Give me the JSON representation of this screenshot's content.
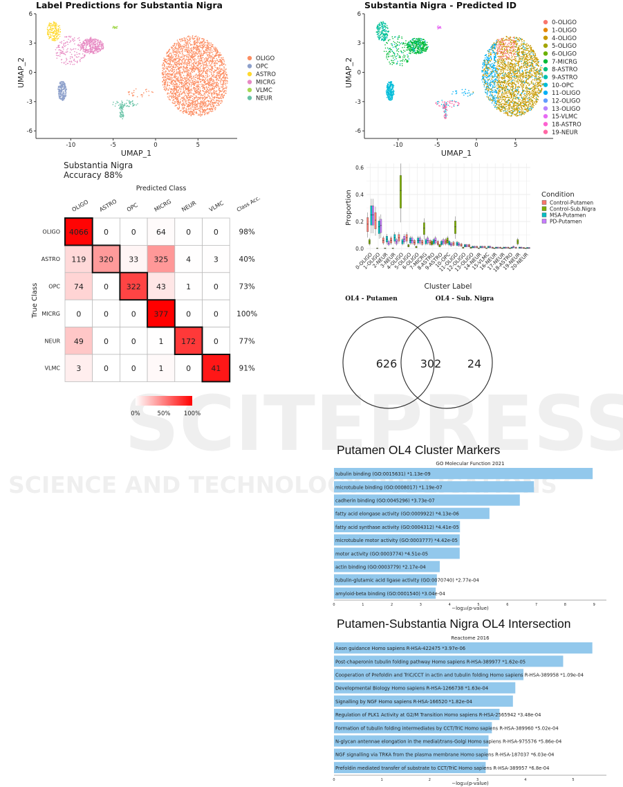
{
  "watermark": {
    "line1": "SCITEPRESS",
    "line2": "SCIENCE AND TECHNOLOGY PUBLICATIONS"
  },
  "chart_data": [
    {
      "id": "umap_labels",
      "type": "scatter",
      "title": "Label Predictions for Substantia Nigra",
      "xlabel": "UMAP_1",
      "ylabel": "UMAP_2",
      "xticks": [
        -10,
        -5,
        0,
        5
      ],
      "yticks": [
        -6,
        -3,
        0,
        3,
        6
      ],
      "xlim": [
        -14,
        9.5
      ],
      "ylim": [
        -6.8,
        6.2
      ],
      "legend": [
        {
          "label": "OLIGO",
          "color": "#fc8d62"
        },
        {
          "label": "OPC",
          "color": "#8da0cb"
        },
        {
          "label": "ASTRO",
          "color": "#ffd92f"
        },
        {
          "label": "MICRG",
          "color": "#e78ac3"
        },
        {
          "label": "VLMC",
          "color": "#a6d854"
        },
        {
          "label": "NEUR",
          "color": "#66c2a5"
        }
      ],
      "regions": [
        {
          "label": "OLIGO",
          "center": [
            4.6,
            -0.4
          ],
          "spread": [
            3.9,
            4.1
          ],
          "count": 2600
        },
        {
          "label": "ASTRO",
          "center": [
            -12.0,
            4.2
          ],
          "spread": [
            0.8,
            1.0
          ],
          "count": 170
        },
        {
          "label": "MICRG",
          "center": [
            -7.5,
            2.7
          ],
          "spread": [
            1.4,
            0.8
          ],
          "count": 330
        },
        {
          "label": "MICRG",
          "center": [
            -10.0,
            2.2
          ],
          "spread": [
            1.8,
            1.6
          ],
          "count": 160
        },
        {
          "label": "OPC",
          "center": [
            -11.0,
            -1.9
          ],
          "spread": [
            0.5,
            1.0
          ],
          "count": 220
        },
        {
          "label": "NEUR",
          "center": [
            -4.0,
            -3.9
          ],
          "spread": [
            0.25,
            0.9
          ],
          "count": 60
        },
        {
          "label": "NEUR",
          "center": [
            -3.6,
            -3.2
          ],
          "spread": [
            1.6,
            0.35
          ],
          "count": 50
        },
        {
          "label": "VLMC",
          "center": [
            -4.8,
            4.6
          ],
          "spread": [
            0.3,
            0.12
          ],
          "count": 18
        },
        {
          "label": "OLIGO",
          "center": [
            -1.8,
            -2.1
          ],
          "spread": [
            1.6,
            0.4
          ],
          "count": 25
        }
      ]
    },
    {
      "id": "umap_predicted",
      "type": "scatter",
      "title": "Substantia Nigra - Predicted ID",
      "xlabel": "UMAP_1",
      "ylabel": "UMAP_2",
      "xticks": [
        -10,
        -5,
        0,
        5
      ],
      "yticks": [
        -6,
        -3,
        0,
        3,
        6
      ],
      "legend": [
        {
          "label": "0-OLIGO",
          "color": "#F8766D"
        },
        {
          "label": "1-OLIGO",
          "color": "#E58700"
        },
        {
          "label": "4-OLIGO",
          "color": "#C99800"
        },
        {
          "label": "5-OLIGO",
          "color": "#A3A500"
        },
        {
          "label": "6-OLIGO",
          "color": "#6BB100"
        },
        {
          "label": "7-MICRG",
          "color": "#00BA38"
        },
        {
          "label": "8-ASTRO",
          "color": "#00BF7D"
        },
        {
          "label": "9-ASTRO",
          "color": "#00C0AF"
        },
        {
          "label": "10-OPC",
          "color": "#00BCD8"
        },
        {
          "label": "11-OLIGO",
          "color": "#00B0F6"
        },
        {
          "label": "12-OLIGO",
          "color": "#619CFF"
        },
        {
          "label": "13-OLIGO",
          "color": "#B983FF"
        },
        {
          "label": "15-VLMC",
          "color": "#E76BF3"
        },
        {
          "label": "18-ASTRO",
          "color": "#FD61D1"
        },
        {
          "label": "19-NEUR",
          "color": "#FF67A4"
        }
      ]
    },
    {
      "id": "confusion_matrix",
      "type": "heatmap",
      "title": "Substantia Nigra",
      "subtitle": "Accuracy 88%",
      "xlabel": "Predicted Class",
      "ylabel": "True Class",
      "acc_header": "Class Acc.",
      "classes": [
        "OLIGO",
        "ASTRO",
        "OPC",
        "MICRG",
        "NEUR",
        "VLMC"
      ],
      "matrix": [
        [
          4066,
          0,
          0,
          64,
          0,
          0
        ],
        [
          119,
          320,
          33,
          325,
          4,
          3
        ],
        [
          74,
          0,
          322,
          43,
          1,
          0
        ],
        [
          0,
          0,
          0,
          377,
          0,
          0
        ],
        [
          49,
          0,
          0,
          1,
          172,
          0
        ],
        [
          3,
          0,
          0,
          1,
          0,
          41
        ]
      ],
      "class_acc": [
        "98%",
        "40%",
        "73%",
        "100%",
        "77%",
        "91%"
      ],
      "colorbar_ticks": [
        "0%",
        "50%",
        "100%"
      ],
      "color_high": "#ff0000"
    },
    {
      "id": "cluster_proportions",
      "type": "box",
      "xlabel": "Cluster Label",
      "ylabel": "Proportion",
      "yticks": [
        "0.0",
        "0.2",
        "0.4",
        "0.6"
      ],
      "ylim": [
        0,
        0.62
      ],
      "legend_title": "Condition",
      "categories": [
        "0-OLIGO",
        "1-OLIGO",
        "2-NEUR",
        "3-NEUR",
        "4-OLIGO",
        "5-OLIGO",
        "6-OLIGO",
        "7-MICRG",
        "8-ASTRO",
        "9-ASTRO",
        "10-OPC",
        "11-OLIGO",
        "12-OLIGO",
        "13-OLIGO",
        "14-NEUR",
        "15-VLMC",
        "16-NEUR",
        "17-NEUR",
        "18-ASTRO",
        "19-NEUR",
        "20-NEUR"
      ],
      "series": [
        {
          "name": "Control-Putamen",
          "color": "#f8766d",
          "median": [
            0.18,
            0.21,
            0.06,
            0.06,
            0.08,
            0.08,
            0.045,
            0.045,
            0.045,
            0.04,
            0.05,
            0.035,
            0.025,
            0.02,
            0.01,
            0.01,
            0.005,
            0.005,
            0.005,
            0.005,
            0.003
          ]
        },
        {
          "name": "Control-Sub.Nigra",
          "color": "#7cae00",
          "median": [
            0.05,
            0.0,
            0.0,
            0.0,
            0.43,
            0.02,
            0.01,
            0.15,
            0.04,
            0.02,
            0.06,
            0.16,
            0.005,
            0.005,
            0.0,
            0.0,
            0.0,
            0.0,
            0.0,
            0.05,
            0.0
          ]
        },
        {
          "name": "MSA-Putamen",
          "color": "#00bfc4",
          "median": [
            0.25,
            0.16,
            0.07,
            0.08,
            0.05,
            0.06,
            0.06,
            0.05,
            0.05,
            0.04,
            0.04,
            0.035,
            0.02,
            0.01,
            0.01,
            0.01,
            0.005,
            0.005,
            0.005,
            0.005,
            0.003
          ]
        },
        {
          "name": "PD-Putamen",
          "color": "#c77cff",
          "median": [
            0.25,
            0.17,
            0.04,
            0.05,
            0.07,
            0.06,
            0.06,
            0.06,
            0.06,
            0.05,
            0.03,
            0.03,
            0.02,
            0.01,
            0.01,
            0.01,
            0.005,
            0.005,
            0.01,
            0.005,
            0.003
          ]
        }
      ]
    },
    {
      "id": "venn",
      "type": "venn",
      "sets": [
        {
          "name": "OL4 - Putamen",
          "only": 626
        },
        {
          "name": "OL4 - Sub. Nigra",
          "only": 24
        }
      ],
      "intersection": 302
    },
    {
      "id": "go_mf",
      "type": "bar",
      "heading": "Putamen OL4 Cluster Markers",
      "title": "GO Molecular Function 2021",
      "xlabel": "−log₁₀(p-value)",
      "xticks": [
        0,
        1,
        2,
        3,
        4,
        5,
        6,
        7,
        8,
        9
      ],
      "bar_color": "#92c8ec",
      "bars": [
        {
          "label": "tubulin binding (GO:0015631)  *1.13e-09",
          "value": 8.95
        },
        {
          "label": "microtubule binding (GO:0008017)  *1.19e-07",
          "value": 6.92
        },
        {
          "label": "cadherin binding (GO:0045296)  *3.73e-07",
          "value": 6.43
        },
        {
          "label": "fatty acid elongase activity (GO:0009922)  *4.13e-06",
          "value": 5.38
        },
        {
          "label": "fatty acid synthase activity (GO:0004312)  *4.41e-05",
          "value": 4.36
        },
        {
          "label": "microtubule motor activity (GO:0003777)  *4.42e-05",
          "value": 4.35
        },
        {
          "label": "motor activity (GO:0003774)  *4.51e-05",
          "value": 4.35
        },
        {
          "label": "actin binding (GO:0003779)  *2.17e-04",
          "value": 3.66
        },
        {
          "label": "tubulin-glutamic acid ligase activity (GO:0070740)  *2.77e-04",
          "value": 3.56
        },
        {
          "label": "amyloid-beta binding (GO:0001540)  *3.04e-04",
          "value": 3.52
        }
      ]
    },
    {
      "id": "reactome",
      "type": "bar",
      "heading": "Putamen-Substantia Nigra OL4 Intersection",
      "title": "Reactome 2016",
      "xlabel": "−log₁₀(p-value)",
      "xticks": [
        0,
        1,
        2,
        3,
        4,
        5
      ],
      "bar_color": "#92c8ec",
      "bars": [
        {
          "label": "Axon guidance Homo sapiens R-HSA-422475  *3.97e-06",
          "value": 5.4
        },
        {
          "label": "Post-chaperonin tubulin folding pathway Homo sapiens R-HSA-389977  *1.62e-05",
          "value": 4.79
        },
        {
          "label": "Cooperation of Prefoldin and TriC/CCT  in actin and tubulin folding Homo sapiens R-HSA-389958  *1.09e-04",
          "value": 3.96
        },
        {
          "label": "Developmental Biology Homo sapiens R-HSA-1266738  *1.63e-04",
          "value": 3.79
        },
        {
          "label": "Signalling by NGF Homo sapiens R-HSA-166520  *1.82e-04",
          "value": 3.74
        },
        {
          "label": "Regulation of PLK1 Activity at G2/M Transition Homo sapiens R-HSA-2565942  *3.48e-04",
          "value": 3.46
        },
        {
          "label": "Formation of tubulin folding intermediates by CCT/TriC Homo sapiens R-HSA-389960  *5.02e-04",
          "value": 3.3
        },
        {
          "label": "N-glycan antennae elongation in the medial/trans-Golgi Homo sapiens R-HSA-975576  *5.86e-04",
          "value": 3.23
        },
        {
          "label": "NGF signalling via TRKA from the plasma membrane Homo sapiens R-HSA-187037  *6.03e-04",
          "value": 3.22
        },
        {
          "label": "Prefoldin mediated transfer of substrate  to CCT/TriC Homo sapiens R-HSA-389957  *6.8e-04",
          "value": 3.17
        }
      ]
    }
  ]
}
